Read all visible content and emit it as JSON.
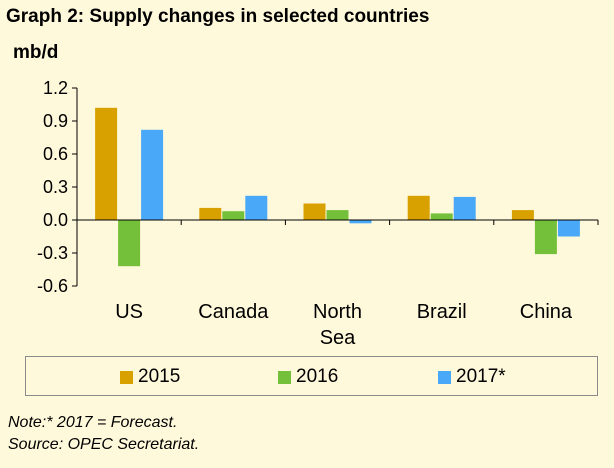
{
  "header": {
    "title": "Graph 2: Supply changes in selected countries",
    "unit": "mb/d"
  },
  "chart_data": {
    "type": "bar",
    "title": "Graph 2: Supply changes in selected countries",
    "ylabel": "mb/d",
    "xlabel": "",
    "categories": [
      "US",
      "Canada",
      "North Sea",
      "Brazil",
      "China"
    ],
    "category_lines": [
      [
        "US"
      ],
      [
        "Canada"
      ],
      [
        "North",
        "Sea"
      ],
      [
        "Brazil"
      ],
      [
        "China"
      ]
    ],
    "series": [
      {
        "name": "2015",
        "color": "#d9a100",
        "values": [
          1.02,
          0.11,
          0.15,
          0.22,
          0.09
        ]
      },
      {
        "name": "2016",
        "color": "#74c03a",
        "values": [
          -0.42,
          0.08,
          0.09,
          0.06,
          -0.31
        ]
      },
      {
        "name": "2017*",
        "color": "#4aa8f8",
        "values": [
          0.82,
          0.22,
          -0.03,
          0.21,
          -0.15
        ]
      }
    ],
    "ylim": [
      -0.6,
      1.2
    ],
    "yticks": [
      "1.2",
      "0.9",
      "0.6",
      "0.3",
      "0.0",
      "-0.3",
      "-0.6"
    ],
    "ytick_values": [
      1.2,
      0.9,
      0.6,
      0.3,
      0.0,
      -0.3,
      -0.6
    ],
    "grid": false,
    "legend_position": "bottom"
  },
  "legend": {
    "items": [
      {
        "label": "2015",
        "color": "#d9a100"
      },
      {
        "label": "2016",
        "color": "#74c03a"
      },
      {
        "label": "2017*",
        "color": "#4aa8f8"
      }
    ]
  },
  "notes": {
    "line1": "Note:* 2017 = Forecast.",
    "line2": "Source: OPEC Secretariat."
  }
}
